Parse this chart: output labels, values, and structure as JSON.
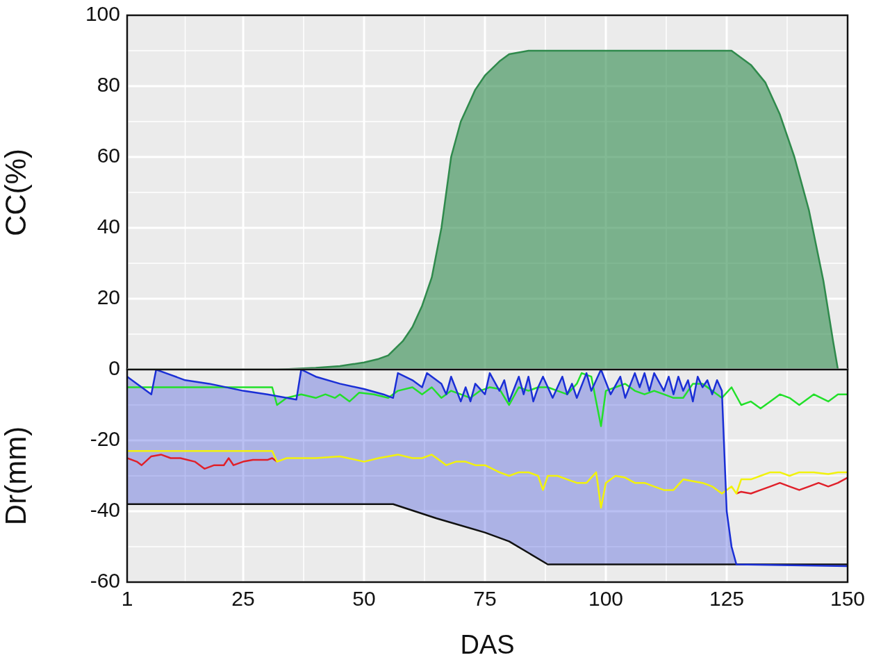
{
  "chart_data": [
    {
      "type": "area",
      "ylabel": "CC(%)",
      "xlim": [
        1,
        150
      ],
      "xticks": [
        1,
        25,
        50,
        75,
        100,
        125,
        150
      ],
      "ylim": [
        0,
        100
      ],
      "yticks": [
        {
          "value": 0,
          "label": null
        },
        20,
        40,
        60,
        80,
        100
      ],
      "grid": true,
      "tick_labels": "y",
      "series": [
        {
          "color": "#2f8a4c",
          "x": [
            1,
            32,
            40,
            45,
            50,
            53,
            55,
            58,
            60,
            62,
            64,
            66,
            67,
            68,
            70,
            72,
            73,
            75,
            78,
            80,
            84,
            88,
            95,
            110,
            125,
            126,
            128,
            130,
            133,
            136,
            139,
            142,
            145,
            147,
            148
          ],
          "values": [
            0,
            0,
            0.5,
            1,
            2,
            3,
            4,
            8,
            12,
            18,
            26,
            40,
            50,
            60,
            70,
            76,
            79,
            83,
            87,
            89,
            90,
            90,
            90,
            90,
            90,
            90,
            88,
            86,
            81,
            72,
            60,
            45,
            25,
            8,
            0
          ]
        }
      ]
    },
    {
      "type": "line",
      "ylabel": "Dr(mm)",
      "xlabel": "DAS",
      "xlim": [
        1,
        150
      ],
      "xticks": [
        1,
        25,
        50,
        75,
        100,
        125,
        150
      ],
      "ylim": [
        -60,
        0
      ],
      "yticks": [
        0,
        -20,
        -40,
        -60
      ],
      "grid": true,
      "series": [
        {
          "type": "line",
          "color": "#1a2fd6",
          "x": [
            1,
            4,
            6,
            7,
            9,
            13,
            18,
            25,
            30,
            36,
            37,
            40,
            45,
            50,
            54,
            56,
            57,
            60,
            62,
            63,
            66,
            67,
            68,
            70,
            71,
            72,
            73,
            75,
            76,
            78,
            79,
            80,
            82,
            83,
            84,
            85,
            86,
            87,
            89,
            91,
            92,
            93,
            94,
            96,
            97,
            99,
            101,
            103,
            104,
            106,
            107,
            108,
            109,
            110,
            112,
            113,
            114,
            115,
            116,
            117,
            118,
            119,
            120,
            121,
            122,
            123,
            124,
            125,
            126,
            127,
            150
          ],
          "values": [
            -2,
            -5,
            -7,
            0,
            -1,
            -3,
            -4,
            -6,
            -7,
            -8.5,
            0,
            -2,
            -4,
            -5.5,
            -7,
            -8,
            -1,
            -3,
            -5,
            -1,
            -4,
            -7,
            -2,
            -9,
            -5,
            -9,
            -4,
            -7,
            -1,
            -6,
            -3,
            -9,
            -2,
            -7,
            -2,
            -9,
            -5,
            -2,
            -8,
            -2,
            -7,
            -4,
            -8,
            -1,
            -6,
            0,
            -7,
            -2,
            -8,
            -1,
            -5,
            -1,
            -6,
            -1,
            -6,
            -2,
            -7,
            -2,
            -6,
            -3,
            -9,
            -2,
            -5,
            -3,
            -7,
            -3,
            -6,
            -40,
            -50,
            -55,
            -55.5
          ],
          "upper": [
            -2,
            -5,
            -7,
            0,
            -1,
            -3,
            -4,
            -6,
            -7,
            -8.5,
            0,
            -2,
            -4,
            -5.5,
            -7,
            -8,
            -1,
            -3,
            -5,
            -1,
            -4,
            -7,
            -2,
            -9,
            -5,
            -9,
            -4,
            -7,
            -1,
            -6,
            -3,
            -9,
            -2,
            -7,
            -2,
            -9,
            -5,
            -2,
            -8,
            -2,
            -7,
            -4,
            -8,
            -1,
            -6,
            0,
            -7,
            -2,
            -8,
            -1,
            -5,
            -1,
            -6,
            -1,
            -6,
            -2,
            -7,
            -2,
            -6,
            -3,
            -9,
            -2,
            -5,
            -3,
            -7,
            -3,
            -6,
            -40,
            -50,
            -55,
            -55.5
          ],
          "lower": [
            -38,
            -38,
            -38,
            -38,
            -38,
            -38,
            -38,
            -38,
            -38,
            -38,
            -38,
            -38,
            -38,
            -38,
            -38,
            -38,
            -38.4,
            -39.8,
            -40.7,
            -41.1,
            -42.4,
            -42.8,
            -43.2,
            -44,
            -44.4,
            -44.8,
            -45.2,
            -46,
            -46.5,
            -47.5,
            -48,
            -48.5,
            -50.1,
            -50.9,
            -51.8,
            -52.6,
            -53.4,
            -54.2,
            -55,
            -55,
            -55,
            -55,
            -55,
            -55,
            -55,
            -55,
            -55,
            -55,
            -55,
            -55,
            -55,
            -55,
            -55,
            -55,
            -55,
            -55,
            -55,
            -55,
            -55,
            -55,
            -55,
            -55,
            -55,
            -55,
            -55,
            -55,
            -55,
            -55,
            -55,
            -55,
            -55.5
          ]
        },
        {
          "color": "#111111",
          "x": [
            1,
            56,
            65,
            75,
            80,
            88,
            150
          ],
          "values": [
            -38,
            -38,
            -42,
            -46,
            -48.5,
            -55,
            -55
          ]
        },
        {
          "color": "#22e02a",
          "x": [
            1,
            31,
            32,
            34,
            37,
            40,
            42,
            44,
            45,
            47,
            49,
            52,
            55,
            57,
            60,
            62,
            64,
            66,
            68,
            70,
            72,
            74,
            76,
            78,
            80,
            82,
            84,
            86,
            88,
            90,
            92,
            94,
            95,
            97,
            98,
            99,
            100,
            102,
            104,
            106,
            108,
            110,
            112,
            114,
            116,
            118,
            120,
            122,
            124,
            126,
            128,
            130,
            132,
            134,
            136,
            138,
            140,
            143,
            146,
            148,
            150
          ],
          "values": [
            -5,
            -5,
            -10,
            -8,
            -7,
            -8,
            -7,
            -8,
            -7,
            -9,
            -6.5,
            -7,
            -8,
            -6,
            -5,
            -7,
            -5,
            -8,
            -6,
            -7,
            -8,
            -6,
            -5,
            -5.5,
            -10,
            -5,
            -6,
            -5,
            -5,
            -6,
            -7,
            -4,
            -1,
            -2,
            -9,
            -16,
            -6,
            -5,
            -4,
            -6,
            -7,
            -6,
            -7,
            -8,
            -8,
            -4,
            -4,
            -6,
            -8,
            -5,
            -10,
            -9,
            -11,
            -9,
            -7,
            -8,
            -10,
            -7,
            -9,
            -7,
            -7
          ]
        },
        {
          "color": "#f2f20c",
          "x": [
            1,
            31,
            32,
            34,
            40,
            45,
            50,
            53,
            55,
            57,
            60,
            62,
            64,
            66,
            67,
            69,
            71,
            73,
            75,
            78,
            80,
            82,
            84,
            86,
            87,
            88,
            90,
            92,
            94,
            96,
            98,
            99,
            100,
            102,
            104,
            106,
            108,
            110,
            112,
            114,
            116,
            118,
            120,
            122,
            124,
            126,
            127,
            128,
            130,
            132,
            134,
            136,
            138,
            140,
            143,
            146,
            148,
            150
          ],
          "values": [
            -23,
            -23,
            -26,
            -25,
            -25,
            -24.5,
            -26,
            -25,
            -24.5,
            -24,
            -25,
            -25,
            -24,
            -26,
            -27,
            -26,
            -26,
            -27,
            -27,
            -29,
            -30,
            -29,
            -29,
            -30,
            -34,
            -30,
            -30,
            -31,
            -32,
            -32,
            -29,
            -39,
            -32,
            -30,
            -30.5,
            -32,
            -32,
            -33,
            -34,
            -34,
            -31,
            -31.5,
            -32,
            -33,
            -35,
            -33,
            -35,
            -31,
            -31,
            -30,
            -29,
            -29,
            -30,
            -29,
            -29,
            -29.5,
            -29,
            -29
          ]
        },
        {
          "color": "#e0202a",
          "x": [
            1,
            3,
            4,
            6,
            8,
            10,
            12,
            15,
            17,
            19,
            21,
            22,
            23,
            25,
            27,
            30,
            31,
            32,
            33,
            127,
            128,
            130,
            132,
            134,
            136,
            138,
            140,
            142,
            144,
            146,
            148,
            150
          ],
          "values": [
            -25,
            -26,
            -27,
            -24.5,
            -24,
            -25,
            -25,
            -26,
            -28,
            -27,
            -27,
            -25,
            -27,
            -26,
            -25.5,
            -25.5,
            -25,
            -26,
            null,
            -35,
            -34.5,
            -35,
            -34,
            -33,
            -32,
            -33,
            -34,
            -33,
            -32,
            -33,
            -32,
            -30.5
          ]
        }
      ]
    }
  ]
}
